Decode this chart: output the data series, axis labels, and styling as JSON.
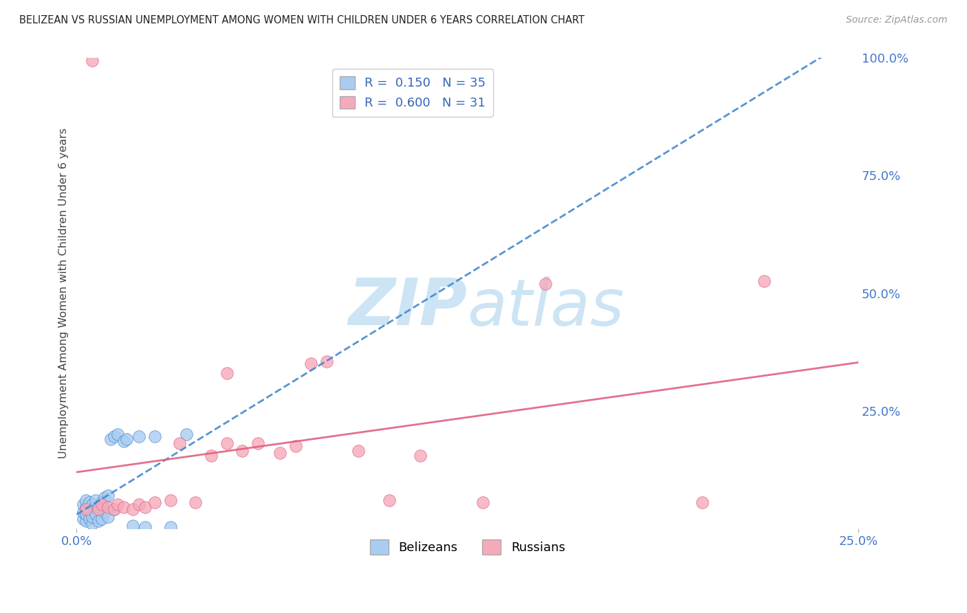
{
  "title": "BELIZEAN VS RUSSIAN UNEMPLOYMENT AMONG WOMEN WITH CHILDREN UNDER 6 YEARS CORRELATION CHART",
  "source": "Source: ZipAtlas.com",
  "ylabel": "Unemployment Among Women with Children Under 6 years",
  "legend_bottom": [
    "Belizeans",
    "Russians"
  ],
  "belizean_R": "0.150",
  "belizean_N": "35",
  "russian_R": "0.600",
  "russian_N": "31",
  "belizean_color": "#aaccf0",
  "belizean_line_color": "#4488cc",
  "russian_color": "#f5aabb",
  "russian_line_color": "#e06080",
  "watermark_ZIP_color": "#cce4f4",
  "watermark_atlas_color": "#cce4f4",
  "background_color": "#ffffff",
  "grid_color": "#dddddd",
  "xlim": [
    0.0,
    0.25
  ],
  "ylim": [
    0.0,
    1.0
  ],
  "belizean_points_x": [
    0.002,
    0.002,
    0.002,
    0.003,
    0.003,
    0.003,
    0.003,
    0.004,
    0.004,
    0.004,
    0.005,
    0.005,
    0.005,
    0.006,
    0.006,
    0.007,
    0.007,
    0.008,
    0.008,
    0.009,
    0.009,
    0.01,
    0.01,
    0.011,
    0.012,
    0.012,
    0.013,
    0.015,
    0.016,
    0.018,
    0.02,
    0.022,
    0.025,
    0.03,
    0.035
  ],
  "belizean_points_y": [
    0.02,
    0.035,
    0.05,
    0.015,
    0.03,
    0.045,
    0.06,
    0.02,
    0.04,
    0.055,
    0.01,
    0.025,
    0.05,
    0.03,
    0.06,
    0.015,
    0.045,
    0.02,
    0.055,
    0.035,
    0.065,
    0.025,
    0.07,
    0.19,
    0.04,
    0.195,
    0.2,
    0.185,
    0.19,
    0.005,
    0.195,
    0.003,
    0.195,
    0.003,
    0.2
  ],
  "russian_points_x": [
    0.003,
    0.005,
    0.007,
    0.008,
    0.01,
    0.012,
    0.013,
    0.015,
    0.018,
    0.02,
    0.022,
    0.025,
    0.03,
    0.033,
    0.038,
    0.043,
    0.048,
    0.053,
    0.058,
    0.065,
    0.07,
    0.075,
    0.08,
    0.09,
    0.1,
    0.11,
    0.13,
    0.15,
    0.2,
    0.22,
    0.048
  ],
  "russian_points_y": [
    0.04,
    0.995,
    0.04,
    0.05,
    0.045,
    0.04,
    0.05,
    0.045,
    0.04,
    0.05,
    0.045,
    0.055,
    0.06,
    0.18,
    0.055,
    0.155,
    0.18,
    0.165,
    0.18,
    0.16,
    0.175,
    0.35,
    0.355,
    0.165,
    0.06,
    0.155,
    0.055,
    0.52,
    0.055,
    0.525,
    0.33
  ]
}
